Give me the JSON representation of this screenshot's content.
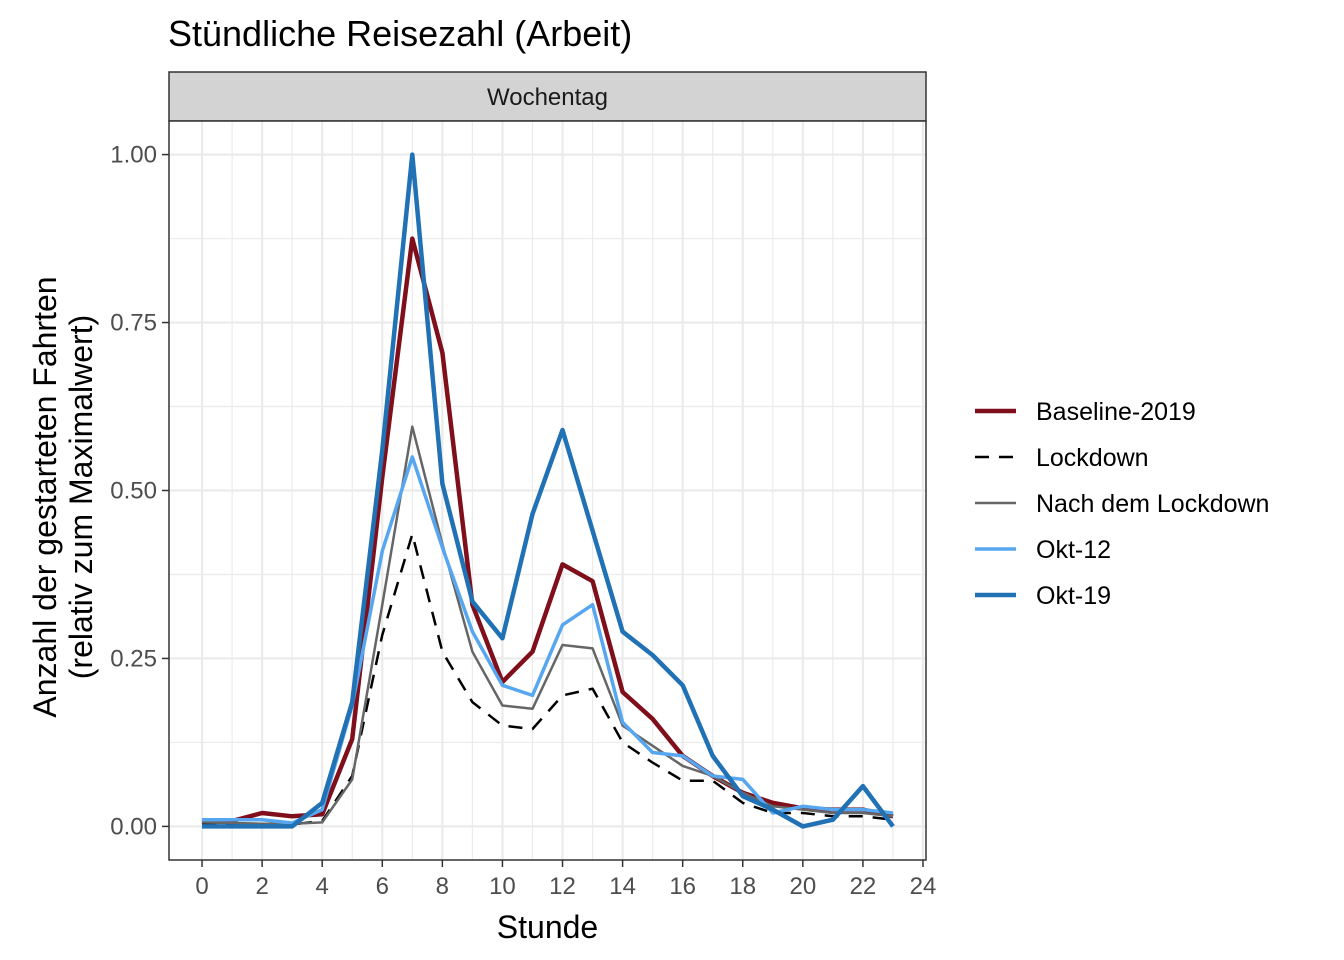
{
  "chart_data": {
    "type": "line",
    "title": "Stündliche Reisezahl (Arbeit)",
    "facet_label": "Wochentag",
    "xlabel": "Stunde",
    "ylabel_line1": "Anzahl der gestarteten Fahrten",
    "ylabel_line2": "(relativ zum Maximalwert)",
    "xlim": [
      -1.1,
      24.1
    ],
    "ylim": [
      -0.05,
      1.05
    ],
    "x_ticks": [
      0,
      2,
      4,
      6,
      8,
      10,
      12,
      14,
      16,
      18,
      20,
      22,
      24
    ],
    "x_tick_labels": [
      "0",
      "2",
      "4",
      "6",
      "8",
      "10",
      "12",
      "14",
      "16",
      "18",
      "20",
      "22",
      "24"
    ],
    "y_ticks": [
      0,
      0.25,
      0.5,
      0.75,
      1.0
    ],
    "y_tick_labels": [
      "0.00",
      "0.25",
      "0.50",
      "0.75",
      "1.00"
    ],
    "grid": true,
    "legend_position": "right",
    "x": [
      0,
      1,
      2,
      3,
      4,
      5,
      6,
      7,
      8,
      9,
      10,
      11,
      12,
      13,
      14,
      15,
      16,
      17,
      18,
      19,
      20,
      21,
      22,
      23
    ],
    "series": [
      {
        "name": "Baseline-2019",
        "color": "#7f0f1a",
        "dash": "solid",
        "width": 4.5,
        "values": [
          0.005,
          0.008,
          0.02,
          0.015,
          0.018,
          0.13,
          0.52,
          0.875,
          0.705,
          0.33,
          0.215,
          0.26,
          0.39,
          0.365,
          0.2,
          0.16,
          0.105,
          0.075,
          0.05,
          0.035,
          0.027,
          0.025,
          0.025,
          0.015
        ]
      },
      {
        "name": "Lockdown",
        "color": "#000000",
        "dash": "dashed",
        "width": 2.5,
        "values": [
          0.005,
          0.004,
          0.003,
          0.003,
          0.008,
          0.075,
          0.285,
          0.435,
          0.26,
          0.185,
          0.15,
          0.145,
          0.195,
          0.205,
          0.125,
          0.095,
          0.068,
          0.068,
          0.035,
          0.02,
          0.02,
          0.015,
          0.015,
          0.01
        ]
      },
      {
        "name": "Nach dem Lockdown",
        "color": "#666666",
        "dash": "solid",
        "width": 2.5,
        "values": [
          0.006,
          0.005,
          0.004,
          0.004,
          0.006,
          0.07,
          0.33,
          0.595,
          0.42,
          0.26,
          0.18,
          0.175,
          0.27,
          0.265,
          0.15,
          0.12,
          0.09,
          0.075,
          0.05,
          0.03,
          0.025,
          0.02,
          0.02,
          0.015
        ]
      },
      {
        "name": "Okt-12",
        "color": "#56a7f0",
        "dash": "solid",
        "width": 3.5,
        "values": [
          0.01,
          0.01,
          0.01,
          0.005,
          0.025,
          0.18,
          0.41,
          0.55,
          0.415,
          0.29,
          0.21,
          0.195,
          0.3,
          0.33,
          0.155,
          0.11,
          0.105,
          0.075,
          0.07,
          0.02,
          0.03,
          0.025,
          0.025,
          0.02
        ]
      },
      {
        "name": "Okt-19",
        "color": "#2171b5",
        "dash": "solid",
        "width": 4.5,
        "values": [
          0.0,
          0.0,
          0.0,
          0.0,
          0.035,
          0.185,
          0.56,
          1.0,
          0.51,
          0.335,
          0.28,
          0.465,
          0.59,
          0.44,
          0.29,
          0.255,
          0.21,
          0.105,
          0.045,
          0.025,
          0.0,
          0.01,
          0.06,
          0.0
        ]
      }
    ]
  }
}
